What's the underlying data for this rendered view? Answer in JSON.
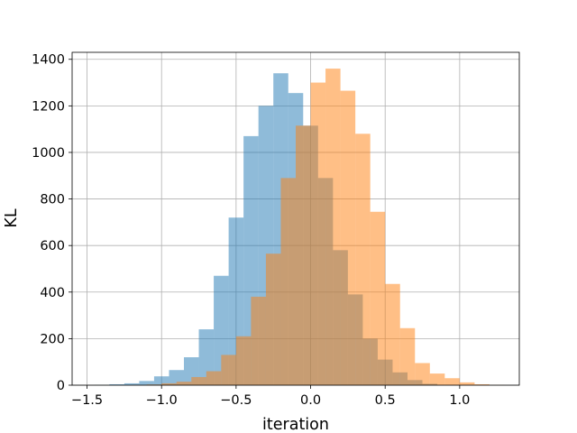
{
  "chart_data": {
    "type": "histogram",
    "title": "",
    "xlabel": "iteration",
    "ylabel": "KL",
    "xlim": [
      -1.6,
      1.4
    ],
    "ylim": [
      0,
      1430
    ],
    "xticks": [
      -1.5,
      -1.0,
      -0.5,
      0.0,
      0.5,
      1.0
    ],
    "xtick_labels": [
      "−1.5",
      "−1.0",
      "−0.5",
      "0.0",
      "0.5",
      "1.0"
    ],
    "yticks": [
      0,
      200,
      400,
      600,
      800,
      1000,
      1200,
      1400
    ],
    "ytick_labels": [
      "0",
      "200",
      "400",
      "600",
      "800",
      "1000",
      "1200",
      "1400"
    ],
    "grid": true,
    "legend": null,
    "series": [
      {
        "color": "#1f77b4",
        "opacity": 0.5,
        "bin_width": 0.1,
        "bin_starts": [
          -1.45,
          -1.35,
          -1.25,
          -1.15,
          -1.05,
          -0.95,
          -0.85,
          -0.75,
          -0.65,
          -0.55,
          -0.45,
          -0.35,
          -0.25,
          -0.15,
          -0.05,
          0.05,
          0.15,
          0.25,
          0.35,
          0.45,
          0.55,
          0.65,
          0.75
        ],
        "values": [
          1,
          4,
          8,
          18,
          38,
          65,
          120,
          240,
          470,
          720,
          1070,
          1200,
          1340,
          1255,
          1115,
          890,
          580,
          390,
          200,
          110,
          55,
          22,
          6
        ]
      },
      {
        "color": "#ff7f0e",
        "opacity": 0.5,
        "bin_width": 0.1,
        "bin_starts": [
          -1.2,
          -1.1,
          -1.0,
          -0.9,
          -0.8,
          -0.7,
          -0.6,
          -0.5,
          -0.4,
          -0.3,
          -0.2,
          -0.1,
          0.0,
          0.1,
          0.2,
          0.3,
          0.4,
          0.5,
          0.6,
          0.7,
          0.8,
          0.9,
          1.0,
          1.1,
          1.2
        ],
        "values": [
          1,
          3,
          8,
          15,
          35,
          60,
          130,
          210,
          380,
          565,
          890,
          1115,
          1300,
          1360,
          1265,
          1080,
          745,
          435,
          245,
          95,
          50,
          30,
          12,
          4,
          1
        ]
      }
    ]
  }
}
